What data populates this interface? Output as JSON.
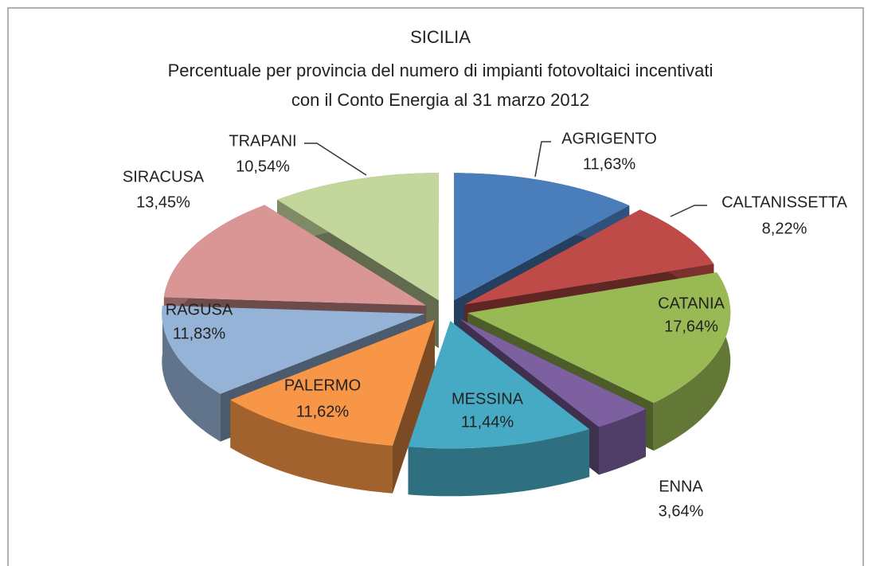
{
  "chart_data": {
    "type": "pie3d",
    "title": "SICILIA",
    "subtitle": [
      "Percentuale per provincia del numero di impianti fotovoltaici incentivati",
      "con il Conto Energia al 31 marzo 2012"
    ],
    "categories": [
      "AGRIGENTO",
      "CALTANISSETTA",
      "CATANIA",
      "ENNA",
      "MESSINA",
      "PALERMO",
      "RAGUSA",
      "SIRACUSA",
      "TRAPANI"
    ],
    "values": [
      11.63,
      8.22,
      17.64,
      3.64,
      11.44,
      11.62,
      11.83,
      13.45,
      10.54
    ],
    "value_labels": [
      "11,63%",
      "8,22%",
      "17,64%",
      "3,64%",
      "11,44%",
      "11,62%",
      "11,83%",
      "13,45%",
      "10,54%"
    ],
    "colors": [
      "#4a7ebb",
      "#be4b48",
      "#98b954",
      "#7d60a0",
      "#46aac5",
      "#f79646",
      "#95b3d7",
      "#d99694",
      "#c3d69b"
    ]
  }
}
